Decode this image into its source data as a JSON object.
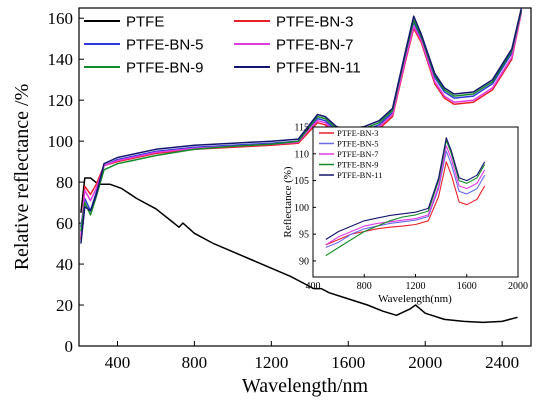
{
  "chart_data": [
    {
      "type": "line",
      "title": "",
      "xlabel": "Wavelength/nm",
      "ylabel": "Relative reflectance /%",
      "xlim": [
        200,
        2550
      ],
      "ylim": [
        0,
        165
      ],
      "xticks": [
        400,
        800,
        1200,
        1600,
        2000,
        2400
      ],
      "yticks": [
        0,
        20,
        40,
        60,
        80,
        100,
        120,
        140,
        160
      ],
      "legend_position": "top, two columns",
      "series": [
        {
          "name": "PTFE",
          "color": "#000000",
          "points": [
            [
              210,
              65
            ],
            [
              230,
              82
            ],
            [
              260,
              82
            ],
            [
              300,
              79
            ],
            [
              360,
              79
            ],
            [
              420,
              77
            ],
            [
              500,
              72
            ],
            [
              600,
              67
            ],
            [
              680,
              61
            ],
            [
              720,
              58
            ],
            [
              740,
              60
            ],
            [
              800,
              55
            ],
            [
              900,
              50
            ],
            [
              1000,
              46
            ],
            [
              1100,
              42
            ],
            [
              1200,
              38
            ],
            [
              1300,
              34
            ],
            [
              1380,
              30
            ],
            [
              1420,
              28
            ],
            [
              1460,
              28
            ],
            [
              1500,
              26
            ],
            [
              1600,
              23
            ],
            [
              1700,
              20
            ],
            [
              1780,
              17
            ],
            [
              1850,
              15
            ],
            [
              1920,
              18
            ],
            [
              1950,
              20
            ],
            [
              2000,
              16
            ],
            [
              2100,
              13
            ],
            [
              2200,
              12
            ],
            [
              2300,
              11.5
            ],
            [
              2400,
              12
            ],
            [
              2480,
              14
            ]
          ]
        },
        {
          "name": "PTFE-BN-3",
          "color": "#e8202a",
          "points": [
            [
              210,
              52
            ],
            [
              230,
              78
            ],
            [
              260,
              74
            ],
            [
              290,
              79
            ],
            [
              330,
              88
            ],
            [
              400,
              90
            ],
            [
              500,
              92
            ],
            [
              600,
              94
            ],
            [
              800,
              96
            ],
            [
              1000,
              97
            ],
            [
              1200,
              98
            ],
            [
              1340,
              99
            ],
            [
              1390,
              104
            ],
            [
              1440,
              109
            ],
            [
              1480,
              108
            ],
            [
              1540,
              103
            ],
            [
              1600,
              102
            ],
            [
              1680,
              103
            ],
            [
              1760,
              106
            ],
            [
              1830,
              112
            ],
            [
              1900,
              140
            ],
            [
              1940,
              155
            ],
            [
              1980,
              148
            ],
            [
              2050,
              128
            ],
            [
              2100,
              121
            ],
            [
              2150,
              118
            ],
            [
              2250,
              119
            ],
            [
              2350,
              125
            ],
            [
              2450,
              140
            ],
            [
              2500,
              163
            ]
          ]
        },
        {
          "name": "PTFE-BN-5",
          "color": "#2f3bd8",
          "points": [
            [
              210,
              58
            ],
            [
              230,
              72
            ],
            [
              260,
              66
            ],
            [
              290,
              75
            ],
            [
              330,
              88
            ],
            [
              400,
              91
            ],
            [
              500,
              93
            ],
            [
              600,
              95
            ],
            [
              800,
              97
            ],
            [
              1000,
              98
            ],
            [
              1200,
              99
            ],
            [
              1340,
              100
            ],
            [
              1390,
              106
            ],
            [
              1440,
              111
            ],
            [
              1480,
              110
            ],
            [
              1540,
              105
            ],
            [
              1600,
              104
            ],
            [
              1680,
              105
            ],
            [
              1760,
              108
            ],
            [
              1830,
              114
            ],
            [
              1900,
              143
            ],
            [
              1940,
              158
            ],
            [
              1980,
              150
            ],
            [
              2050,
              131
            ],
            [
              2100,
              124
            ],
            [
              2150,
              121
            ],
            [
              2250,
              122
            ],
            [
              2350,
              128
            ],
            [
              2450,
              143
            ],
            [
              2500,
              164
            ]
          ]
        },
        {
          "name": "PTFE-BN-7",
          "color": "#e23ae2",
          "points": [
            [
              210,
              54
            ],
            [
              230,
              76
            ],
            [
              260,
              71
            ],
            [
              290,
              77
            ],
            [
              330,
              88
            ],
            [
              400,
              90.5
            ],
            [
              500,
              92.5
            ],
            [
              600,
              94.5
            ],
            [
              800,
              96.5
            ],
            [
              1000,
              97.5
            ],
            [
              1200,
              98.5
            ],
            [
              1340,
              99.5
            ],
            [
              1390,
              105
            ],
            [
              1440,
              110
            ],
            [
              1480,
              109
            ],
            [
              1540,
              104
            ],
            [
              1600,
              103
            ],
            [
              1680,
              104
            ],
            [
              1760,
              107
            ],
            [
              1830,
              113
            ],
            [
              1900,
              141
            ],
            [
              1940,
              156
            ],
            [
              1980,
              149
            ],
            [
              2050,
              129
            ],
            [
              2100,
              122
            ],
            [
              2150,
              119
            ],
            [
              2250,
              120
            ],
            [
              2350,
              126
            ],
            [
              2450,
              141
            ],
            [
              2500,
              163
            ]
          ]
        },
        {
          "name": "PTFE-BN-9",
          "color": "#148a2a",
          "points": [
            [
              210,
              56
            ],
            [
              230,
              70
            ],
            [
              260,
              64
            ],
            [
              290,
              73
            ],
            [
              330,
              86
            ],
            [
              400,
              89
            ],
            [
              500,
              91
            ],
            [
              600,
              93
            ],
            [
              800,
              96
            ],
            [
              1000,
              97.5
            ],
            [
              1200,
              98.5
            ],
            [
              1340,
              100
            ],
            [
              1390,
              106
            ],
            [
              1440,
              112
            ],
            [
              1480,
              111
            ],
            [
              1540,
              106
            ],
            [
              1600,
              105
            ],
            [
              1680,
              106
            ],
            [
              1760,
              109
            ],
            [
              1830,
              115
            ],
            [
              1900,
              144
            ],
            [
              1940,
              159
            ],
            [
              1980,
              151
            ],
            [
              2050,
              132
            ],
            [
              2100,
              125
            ],
            [
              2150,
              122
            ],
            [
              2250,
              123
            ],
            [
              2350,
              129
            ],
            [
              2450,
              144
            ],
            [
              2500,
              164
            ]
          ]
        },
        {
          "name": "PTFE-BN-11",
          "color": "#141470",
          "points": [
            [
              210,
              50
            ],
            [
              230,
              68
            ],
            [
              260,
              66
            ],
            [
              290,
              74
            ],
            [
              330,
              89
            ],
            [
              400,
              92
            ],
            [
              500,
              94
            ],
            [
              600,
              96
            ],
            [
              800,
              98
            ],
            [
              1000,
              99
            ],
            [
              1200,
              100
            ],
            [
              1340,
              101
            ],
            [
              1390,
              107
            ],
            [
              1440,
              113
            ],
            [
              1480,
              112
            ],
            [
              1540,
              107
            ],
            [
              1600,
              106
            ],
            [
              1680,
              107
            ],
            [
              1760,
              110
            ],
            [
              1830,
              116
            ],
            [
              1900,
              145
            ],
            [
              1940,
              161
            ],
            [
              1980,
              152
            ],
            [
              2050,
              133
            ],
            [
              2100,
              126
            ],
            [
              2150,
              123
            ],
            [
              2250,
              124
            ],
            [
              2350,
              130
            ],
            [
              2450,
              145
            ],
            [
              2500,
              165
            ]
          ]
        }
      ]
    },
    {
      "type": "line",
      "title": "",
      "xlabel": "Wavelength(nm)",
      "ylabel": "Reflectance (%)",
      "xlim": [
        400,
        2000
      ],
      "ylim": [
        87,
        115
      ],
      "xticks": [
        400,
        800,
        1200,
        1600,
        2000
      ],
      "yticks": [
        90,
        95,
        100,
        105,
        110,
        115
      ],
      "legend_position": "top-left",
      "series": [
        {
          "name": "PTFE-BN-3",
          "color": "#e8202a",
          "points": [
            [
              500,
              93
            ],
            [
              600,
              94
            ],
            [
              700,
              95
            ],
            [
              800,
              95.5
            ],
            [
              900,
              96
            ],
            [
              1000,
              96.3
            ],
            [
              1100,
              96.5
            ],
            [
              1200,
              96.8
            ],
            [
              1300,
              97.5
            ],
            [
              1380,
              102
            ],
            [
              1440,
              108.5
            ],
            [
              1480,
              106
            ],
            [
              1540,
              101
            ],
            [
              1600,
              100.5
            ],
            [
              1680,
              101.5
            ],
            [
              1740,
              104
            ]
          ]
        },
        {
          "name": "PTFE-BN-5",
          "color": "#6a6ae8",
          "points": [
            [
              500,
              92.5
            ],
            [
              600,
              93.5
            ],
            [
              700,
              95
            ],
            [
              800,
              96
            ],
            [
              900,
              96.5
            ],
            [
              1000,
              97
            ],
            [
              1100,
              97.3
            ],
            [
              1200,
              97.6
            ],
            [
              1300,
              98.3
            ],
            [
              1380,
              103.5
            ],
            [
              1440,
              110.5
            ],
            [
              1480,
              108
            ],
            [
              1540,
              103
            ],
            [
              1600,
              102.5
            ],
            [
              1680,
              103.5
            ],
            [
              1740,
              106
            ]
          ]
        },
        {
          "name": "PTFE-BN-7",
          "color": "#e23ae2",
          "points": [
            [
              500,
              93
            ],
            [
              600,
              94.5
            ],
            [
              700,
              95.5
            ],
            [
              800,
              96.5
            ],
            [
              900,
              97
            ],
            [
              1000,
              97.3
            ],
            [
              1100,
              97.6
            ],
            [
              1200,
              97.9
            ],
            [
              1300,
              98.6
            ],
            [
              1380,
              104
            ],
            [
              1440,
              111.5
            ],
            [
              1480,
              109
            ],
            [
              1540,
              104
            ],
            [
              1600,
              103.5
            ],
            [
              1680,
              104.5
            ],
            [
              1740,
              107
            ]
          ]
        },
        {
          "name": "PTFE-BN-9",
          "color": "#148a2a",
          "points": [
            [
              500,
              91
            ],
            [
              600,
              92.5
            ],
            [
              700,
              94
            ],
            [
              800,
              95.5
            ],
            [
              900,
              96.5
            ],
            [
              1000,
              97.5
            ],
            [
              1100,
              98.2
            ],
            [
              1200,
              98.6
            ],
            [
              1300,
              99.3
            ],
            [
              1380,
              105
            ],
            [
              1440,
              112.5
            ],
            [
              1480,
              110
            ],
            [
              1540,
              105
            ],
            [
              1600,
              104.5
            ],
            [
              1680,
              105.5
            ],
            [
              1740,
              108
            ]
          ]
        },
        {
          "name": "PTFE-BN-11",
          "color": "#141470",
          "points": [
            [
              500,
              94
            ],
            [
              600,
              95.5
            ],
            [
              700,
              96.5
            ],
            [
              800,
              97.5
            ],
            [
              900,
              98
            ],
            [
              1000,
              98.5
            ],
            [
              1100,
              98.8
            ],
            [
              1200,
              99.1
            ],
            [
              1300,
              99.8
            ],
            [
              1380,
              105.5
            ],
            [
              1440,
              113
            ],
            [
              1480,
              110.5
            ],
            [
              1540,
              105.5
            ],
            [
              1600,
              105
            ],
            [
              1680,
              106
            ],
            [
              1740,
              108.5
            ]
          ]
        }
      ]
    }
  ]
}
